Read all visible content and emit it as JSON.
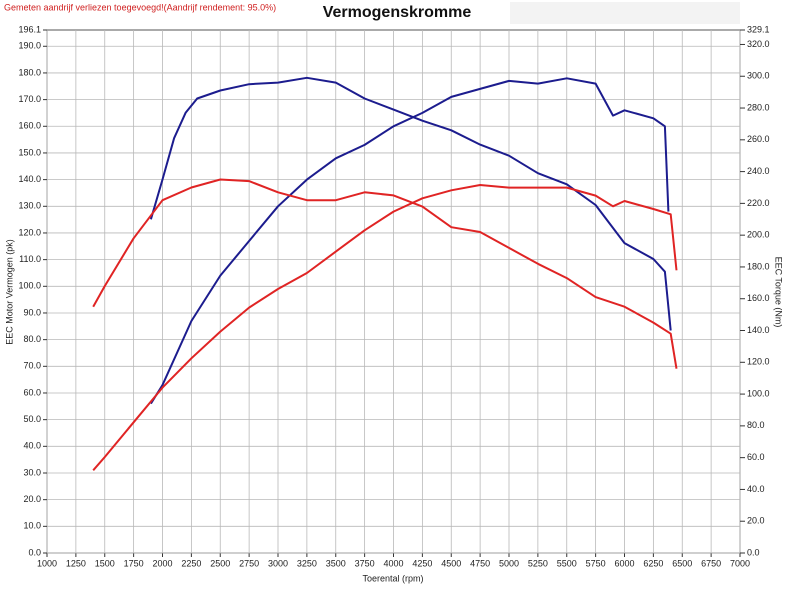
{
  "chart_data": {
    "type": "line",
    "title": "Vermogenskromme",
    "note": "Gemeten aandrijf verliezen toegevoegd!(Aandrijf rendement: 95.0%)",
    "x_label": "Toerental (rpm)",
    "y_label": "EEC Motor Vermogen (pk)",
    "y2_label": "EEC Torque (Nm)",
    "xlim": [
      1000,
      7000
    ],
    "xticks": [
      1000,
      1250,
      1500,
      1750,
      2000,
      2250,
      2500,
      2750,
      3000,
      3250,
      3500,
      3750,
      4000,
      4250,
      4500,
      4750,
      5000,
      5250,
      5500,
      5750,
      6000,
      6250,
      6500,
      6750,
      7000
    ],
    "ylim": [
      0,
      196.1
    ],
    "yticks": [
      {
        "value": 0,
        "label": "0.0"
      },
      {
        "value": 10,
        "label": "10.0"
      },
      {
        "value": 20,
        "label": "20.0"
      },
      {
        "value": 30,
        "label": "30.0"
      },
      {
        "value": 40,
        "label": "40.0"
      },
      {
        "value": 50,
        "label": "50.0"
      },
      {
        "value": 60,
        "label": "60.0"
      },
      {
        "value": 70,
        "label": "70.0"
      },
      {
        "value": 80,
        "label": "80.0"
      },
      {
        "value": 90,
        "label": "90.0"
      },
      {
        "value": 100,
        "label": "100.0"
      },
      {
        "value": 110,
        "label": "110.0"
      },
      {
        "value": 120,
        "label": "120.0"
      },
      {
        "value": 130,
        "label": "130.0"
      },
      {
        "value": 140,
        "label": "140.0"
      },
      {
        "value": 150,
        "label": "150.0"
      },
      {
        "value": 160,
        "label": "160.0"
      },
      {
        "value": 170,
        "label": "170.0"
      },
      {
        "value": 180,
        "label": "180.0"
      },
      {
        "value": 190,
        "label": "190.0"
      },
      196.1
    ],
    "y2lim": [
      0,
      329.1
    ],
    "y2ticks": [
      {
        "value": 0,
        "label": "0.0"
      },
      {
        "value": 20,
        "label": "20.0"
      },
      {
        "value": 40,
        "label": "40.0"
      },
      {
        "value": 60,
        "label": "60.0"
      },
      {
        "value": 80,
        "label": "80.0"
      },
      {
        "value": 100,
        "label": "100.0"
      },
      {
        "value": 120,
        "label": "120.0"
      },
      {
        "value": 140,
        "label": "140.0"
      },
      {
        "value": 160,
        "label": "160.0"
      },
      {
        "value": 180,
        "label": "180.0"
      },
      {
        "value": 200,
        "label": "200.0"
      },
      {
        "value": 220,
        "label": "220.0"
      },
      {
        "value": 240,
        "label": "240.0"
      },
      {
        "value": 260,
        "label": "260.0"
      },
      {
        "value": 280,
        "label": "280.0"
      },
      {
        "value": 300,
        "label": "300.0"
      },
      {
        "value": 320,
        "label": "320.0"
      },
      329.1
    ],
    "grid": true,
    "series": [
      {
        "color": "#1c1c8e",
        "axis": "y",
        "x": [
          1900,
          2000,
          2250,
          2500,
          2750,
          3000,
          3250,
          3500,
          3750,
          4000,
          4250,
          4500,
          4750,
          5000,
          5250,
          5500,
          5750,
          5900,
          6000,
          6250,
          6350,
          6380
        ],
        "values": [
          56,
          63,
          87,
          104,
          117,
          130,
          140,
          148,
          153,
          160,
          165,
          171,
          174,
          177,
          176,
          178,
          176,
          164,
          166,
          163,
          160,
          128
        ]
      },
      {
        "color": "#1c1c8e",
        "axis": "y2",
        "x": [
          1900,
          2000,
          2100,
          2200,
          2300,
          2500,
          2750,
          3000,
          3250,
          3500,
          3750,
          4000,
          4250,
          4500,
          4750,
          5000,
          5250,
          5500,
          5750,
          6000,
          6250,
          6350,
          6400
        ],
        "values": [
          210,
          235,
          261,
          277,
          286,
          291,
          295,
          296,
          299,
          296,
          286,
          279,
          272,
          266,
          257,
          250,
          239,
          232,
          219,
          195,
          185,
          177,
          140
        ]
      },
      {
        "color": "#e02424",
        "axis": "y",
        "x": [
          1400,
          1500,
          1750,
          2000,
          2250,
          2500,
          2750,
          3000,
          3250,
          3500,
          3750,
          4000,
          4250,
          4500,
          4750,
          5000,
          5250,
          5500,
          5750,
          5900,
          6000,
          6250,
          6400,
          6450
        ],
        "values": [
          31,
          36,
          49,
          62,
          73,
          83,
          92,
          99,
          105,
          113,
          121,
          128,
          133,
          136,
          138,
          137,
          137,
          137,
          134,
          130,
          132,
          129,
          127,
          106
        ]
      },
      {
        "color": "#e02424",
        "axis": "y2",
        "x": [
          1400,
          1500,
          1750,
          2000,
          2250,
          2500,
          2750,
          3000,
          3250,
          3500,
          3750,
          4000,
          4250,
          4500,
          4750,
          5000,
          5250,
          5500,
          5750,
          6000,
          6250,
          6400,
          6450
        ],
        "values": [
          155,
          168,
          198,
          222,
          230,
          235,
          234,
          227,
          222,
          222,
          227,
          225,
          218,
          205,
          202,
          192,
          182,
          173,
          161,
          155,
          145,
          138,
          116
        ]
      }
    ]
  }
}
